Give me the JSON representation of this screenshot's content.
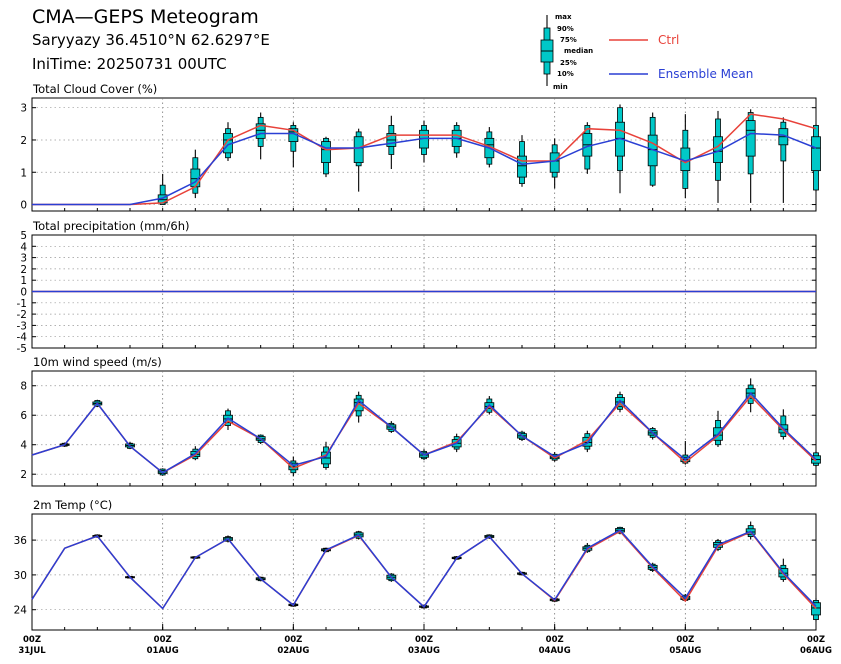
{
  "header": {
    "title": "CMA—GEPS Meteogram",
    "location": "Saryyazy 36.4510°N 62.6297°E",
    "init_time": "IniTime: 20250731 00UTC"
  },
  "legend": {
    "box_labels": [
      "max",
      "90%",
      "75%",
      "median",
      "25%",
      "10%",
      "min"
    ],
    "ctrl": "Ctrl",
    "mean": "Ensemble Mean"
  },
  "colors": {
    "ctrl": "#e8423a",
    "mean": "#2a3fd4",
    "box": "#00c8c8"
  },
  "x_ticks": [
    {
      "t": 0,
      "top": "00Z",
      "bottom": "31JUL"
    },
    {
      "t": 24,
      "top": "00Z",
      "bottom": "01AUG"
    },
    {
      "t": 48,
      "top": "00Z",
      "bottom": "02AUG"
    },
    {
      "t": 72,
      "top": "00Z",
      "bottom": "03AUG"
    },
    {
      "t": 96,
      "top": "00Z",
      "bottom": "04AUG"
    },
    {
      "t": 120,
      "top": "00Z",
      "bottom": "05AUG"
    },
    {
      "t": 144,
      "top": "00Z",
      "bottom": "06AUG"
    }
  ],
  "chart_data": [
    {
      "type": "line",
      "title": "Total Cloud Cover (%)",
      "ylim": [
        -0.2,
        3.3
      ],
      "yticks": [
        0,
        1,
        2,
        3
      ],
      "x": [
        0,
        6,
        12,
        18,
        24,
        30,
        36,
        42,
        48,
        54,
        60,
        66,
        72,
        78,
        84,
        90,
        96,
        102,
        108,
        114,
        120,
        126,
        132,
        138,
        144
      ],
      "ctrl": [
        0,
        0,
        0,
        0,
        0.05,
        0.55,
        2.0,
        2.45,
        2.3,
        1.7,
        1.75,
        2.15,
        2.15,
        2.15,
        1.8,
        1.35,
        1.35,
        2.35,
        2.3,
        1.9,
        1.3,
        1.8,
        2.8,
        2.65,
        2.35
      ],
      "mean": [
        0,
        0,
        0,
        0,
        0.2,
        0.7,
        1.85,
        2.2,
        2.2,
        1.75,
        1.75,
        1.9,
        2.05,
        2.05,
        1.75,
        1.25,
        1.35,
        1.8,
        2.05,
        1.7,
        1.35,
        1.65,
        2.2,
        2.15,
        1.75
      ],
      "boxes": [
        [
          24,
          0,
          0,
          0.05,
          0.15,
          0.3,
          0.6,
          0.95
        ],
        [
          30,
          0.2,
          0.35,
          0.55,
          0.8,
          1.1,
          1.45,
          1.7
        ],
        [
          36,
          1.35,
          1.45,
          1.6,
          2.0,
          2.2,
          2.35,
          2.55
        ],
        [
          42,
          1.4,
          1.8,
          2.05,
          2.3,
          2.5,
          2.7,
          2.85
        ],
        [
          48,
          1.15,
          1.65,
          1.95,
          2.25,
          2.35,
          2.45,
          2.55
        ],
        [
          54,
          0.85,
          0.95,
          1.3,
          1.7,
          1.95,
          2.05,
          2.1
        ],
        [
          60,
          0.4,
          1.2,
          1.3,
          1.75,
          2.1,
          2.25,
          2.35
        ],
        [
          66,
          1.1,
          1.55,
          1.8,
          2.0,
          2.2,
          2.45,
          2.75
        ],
        [
          72,
          1.3,
          1.55,
          1.75,
          2.05,
          2.3,
          2.45,
          2.6
        ],
        [
          78,
          1.45,
          1.6,
          1.8,
          2.05,
          2.3,
          2.45,
          2.55
        ],
        [
          84,
          1.15,
          1.25,
          1.45,
          1.85,
          2.05,
          2.25,
          2.4
        ],
        [
          90,
          0.55,
          0.65,
          0.85,
          1.2,
          1.5,
          1.95,
          2.15
        ],
        [
          96,
          0.5,
          0.85,
          1.0,
          1.35,
          1.6,
          1.85,
          2.05
        ],
        [
          102,
          0.95,
          1.1,
          1.5,
          1.85,
          2.2,
          2.45,
          2.55
        ],
        [
          108,
          0.35,
          1.05,
          1.5,
          2.05,
          2.55,
          3.0,
          3.1
        ],
        [
          114,
          0.55,
          0.6,
          1.2,
          1.7,
          2.15,
          2.7,
          2.85
        ],
        [
          120,
          0.2,
          0.5,
          1.05,
          1.35,
          1.75,
          2.3,
          2.8
        ],
        [
          126,
          0.05,
          0.75,
          1.3,
          1.65,
          2.1,
          2.65,
          2.9
        ],
        [
          132,
          0.05,
          0.95,
          1.5,
          2.3,
          2.6,
          2.85,
          2.95
        ],
        [
          138,
          0.05,
          1.35,
          1.85,
          2.1,
          2.35,
          2.55,
          2.7
        ],
        [
          144,
          0.4,
          0.45,
          1.05,
          1.75,
          2.1,
          2.45,
          2.5
        ]
      ]
    },
    {
      "type": "line",
      "title": "Total precipitation (mm/6h)",
      "ylim": [
        -5,
        5
      ],
      "yticks": [
        -5,
        -4,
        -3,
        -2,
        -1,
        0,
        1,
        2,
        3,
        4,
        5
      ],
      "x": [
        0,
        6,
        12,
        18,
        24,
        30,
        36,
        42,
        48,
        54,
        60,
        66,
        72,
        78,
        84,
        90,
        96,
        102,
        108,
        114,
        120,
        126,
        132,
        138,
        144
      ],
      "ctrl": [
        0,
        0,
        0,
        0,
        0,
        0,
        0,
        0,
        0,
        0,
        0,
        0,
        0,
        0,
        0,
        0,
        0,
        0,
        0,
        0,
        0,
        0,
        0,
        0,
        0
      ],
      "mean": [
        0,
        0,
        0,
        0,
        0,
        0,
        0,
        0,
        0,
        0,
        0,
        0,
        0,
        0,
        0,
        0,
        0,
        0,
        0,
        0,
        0,
        0,
        0,
        0,
        0
      ],
      "boxes": []
    },
    {
      "type": "line",
      "title": "10m wind speed (m/s)",
      "ylim": [
        1.2,
        9
      ],
      "yticks": [
        2,
        4,
        6,
        8
      ],
      "x": [
        0,
        6,
        12,
        18,
        24,
        30,
        36,
        42,
        48,
        54,
        60,
        66,
        72,
        78,
        84,
        90,
        96,
        102,
        108,
        114,
        120,
        126,
        132,
        138,
        144
      ],
      "ctrl": [
        3.3,
        4.0,
        6.8,
        3.9,
        2.1,
        3.3,
        5.6,
        4.4,
        2.4,
        3.3,
        6.8,
        5.2,
        3.3,
        4.2,
        6.6,
        4.6,
        3.1,
        4.3,
        6.8,
        4.8,
        2.8,
        4.6,
        7.3,
        5.0,
        2.9
      ],
      "mean": [
        3.3,
        4.0,
        6.8,
        3.9,
        2.1,
        3.4,
        5.8,
        4.4,
        2.6,
        3.2,
        7.0,
        5.2,
        3.3,
        4.1,
        6.7,
        4.6,
        3.2,
        4.1,
        7.0,
        4.8,
        3.0,
        4.7,
        7.5,
        5.1,
        3.0
      ],
      "boxes": [
        [
          6,
          3.85,
          3.9,
          3.95,
          4.0,
          4.05,
          4.1,
          4.15
        ],
        [
          12,
          6.55,
          6.6,
          6.7,
          6.8,
          6.9,
          7.0,
          7.05
        ],
        [
          18,
          3.7,
          3.75,
          3.85,
          3.95,
          4.05,
          4.1,
          4.2
        ],
        [
          24,
          1.9,
          1.95,
          2.05,
          2.15,
          2.25,
          2.35,
          2.4
        ],
        [
          30,
          2.95,
          3.05,
          3.2,
          3.35,
          3.55,
          3.7,
          3.9
        ],
        [
          36,
          5.0,
          5.3,
          5.5,
          5.75,
          6.0,
          6.3,
          6.45
        ],
        [
          42,
          4.05,
          4.15,
          4.3,
          4.4,
          4.55,
          4.65,
          4.7
        ],
        [
          48,
          1.85,
          2.1,
          2.3,
          2.5,
          2.75,
          2.9,
          3.2
        ],
        [
          54,
          2.3,
          2.45,
          2.7,
          3.1,
          3.5,
          3.85,
          4.2
        ],
        [
          60,
          5.5,
          5.95,
          6.3,
          6.85,
          7.1,
          7.35,
          7.6
        ],
        [
          66,
          4.8,
          4.9,
          5.05,
          5.2,
          5.35,
          5.45,
          5.6
        ],
        [
          72,
          2.95,
          3.05,
          3.15,
          3.3,
          3.45,
          3.55,
          3.7
        ],
        [
          78,
          3.5,
          3.7,
          3.85,
          4.1,
          4.35,
          4.55,
          4.75
        ],
        [
          84,
          6.05,
          6.2,
          6.45,
          6.6,
          6.85,
          7.1,
          7.3
        ],
        [
          90,
          4.25,
          4.35,
          4.45,
          4.6,
          4.75,
          4.85,
          4.95
        ],
        [
          96,
          2.85,
          2.95,
          3.05,
          3.15,
          3.25,
          3.35,
          3.5
        ],
        [
          102,
          3.5,
          3.7,
          3.9,
          4.15,
          4.5,
          4.75,
          4.95
        ],
        [
          108,
          6.2,
          6.4,
          6.6,
          6.9,
          7.2,
          7.4,
          7.6
        ],
        [
          114,
          4.35,
          4.5,
          4.65,
          4.8,
          4.95,
          5.1,
          5.2
        ],
        [
          120,
          2.65,
          2.75,
          2.85,
          3.0,
          3.15,
          3.3,
          4.25
        ],
        [
          126,
          3.85,
          4.0,
          4.3,
          4.65,
          5.15,
          5.65,
          6.3
        ],
        [
          132,
          6.2,
          6.8,
          7.15,
          7.5,
          7.8,
          8.05,
          8.5
        ],
        [
          138,
          4.35,
          4.55,
          4.8,
          5.05,
          5.35,
          5.95,
          6.4
        ],
        [
          144,
          2.5,
          2.6,
          2.75,
          3.0,
          3.25,
          3.45,
          3.6
        ]
      ]
    },
    {
      "type": "line",
      "title": "2m Temp (°C)",
      "ylim": [
        20.5,
        40.5
      ],
      "yticks": [
        24,
        30,
        36
      ],
      "x": [
        0,
        6,
        12,
        18,
        24,
        30,
        36,
        42,
        48,
        54,
        60,
        66,
        72,
        78,
        84,
        90,
        96,
        102,
        108,
        114,
        120,
        126,
        132,
        138,
        144
      ],
      "ctrl": [
        25.8,
        34.6,
        36.7,
        29.6,
        24.2,
        33.0,
        36.2,
        29.3,
        24.8,
        34.2,
        36.8,
        29.6,
        24.5,
        32.9,
        36.6,
        30.2,
        25.6,
        34.4,
        37.5,
        31.2,
        25.5,
        34.9,
        37.4,
        30.2,
        24.2
      ],
      "mean": [
        25.8,
        34.6,
        36.7,
        29.6,
        24.2,
        33.0,
        36.2,
        29.3,
        24.8,
        34.3,
        36.9,
        29.6,
        24.5,
        32.9,
        36.6,
        30.2,
        25.7,
        34.6,
        37.7,
        31.4,
        26.0,
        35.2,
        37.5,
        30.4,
        24.6
      ],
      "boxes": [
        [
          12,
          36.4,
          36.5,
          36.6,
          36.7,
          36.8,
          36.9,
          37.0
        ],
        [
          18,
          29.4,
          29.45,
          29.5,
          29.6,
          29.7,
          29.75,
          29.8
        ],
        [
          30,
          32.8,
          32.85,
          32.9,
          33.0,
          33.1,
          33.15,
          33.2
        ],
        [
          36,
          35.6,
          35.8,
          35.95,
          36.2,
          36.45,
          36.6,
          36.8
        ],
        [
          42,
          28.9,
          29.0,
          29.15,
          29.3,
          29.5,
          29.6,
          29.7
        ],
        [
          48,
          24.5,
          24.6,
          24.7,
          24.8,
          24.95,
          25.05,
          25.15
        ],
        [
          54,
          33.9,
          34.0,
          34.15,
          34.3,
          34.5,
          34.6,
          34.7
        ],
        [
          60,
          36.1,
          36.3,
          36.55,
          36.9,
          37.25,
          37.45,
          37.6
        ],
        [
          66,
          28.8,
          29.0,
          29.25,
          29.6,
          29.95,
          30.15,
          30.3
        ],
        [
          72,
          24.2,
          24.3,
          24.4,
          24.5,
          24.65,
          24.75,
          24.85
        ],
        [
          78,
          32.6,
          32.7,
          32.8,
          32.9,
          33.05,
          33.15,
          33.25
        ],
        [
          84,
          36.2,
          36.35,
          36.45,
          36.6,
          36.8,
          36.9,
          37.0
        ],
        [
          90,
          29.9,
          30.0,
          30.1,
          30.2,
          30.35,
          30.45,
          30.55
        ],
        [
          96,
          25.3,
          25.45,
          25.55,
          25.7,
          25.85,
          25.95,
          26.05
        ],
        [
          102,
          33.8,
          34.0,
          34.25,
          34.6,
          34.85,
          35.1,
          35.5
        ],
        [
          108,
          37.0,
          37.2,
          37.4,
          37.7,
          38.0,
          38.2,
          38.3
        ],
        [
          114,
          30.5,
          30.75,
          30.95,
          31.3,
          31.65,
          31.85,
          32.1
        ],
        [
          120,
          25.4,
          25.6,
          25.75,
          26.0,
          26.3,
          26.5,
          26.7
        ],
        [
          126,
          34.1,
          34.4,
          34.75,
          35.2,
          35.6,
          35.9,
          36.2
        ],
        [
          132,
          36.1,
          36.6,
          37.0,
          37.4,
          37.95,
          38.5,
          39.2
        ],
        [
          138,
          28.8,
          29.2,
          29.65,
          30.3,
          31.1,
          31.65,
          32.8
        ],
        [
          144,
          22.0,
          22.3,
          23.1,
          24.3,
          25.2,
          25.6,
          26.0
        ]
      ]
    }
  ]
}
